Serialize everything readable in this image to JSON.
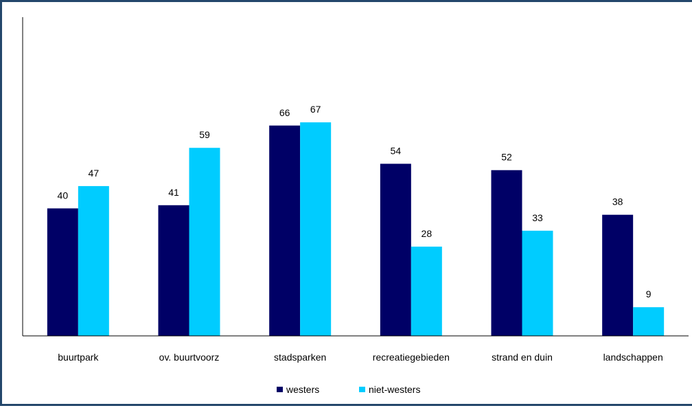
{
  "chart_data": {
    "type": "bar",
    "categories": [
      "buurtpark",
      "ov. buurtvoorz",
      "stadsparken",
      "recreatiegebieden",
      "strand en duin",
      "landschappen"
    ],
    "series": [
      {
        "name": "westers",
        "values": [
          40,
          41,
          66,
          54,
          52,
          38
        ],
        "color": "#000066"
      },
      {
        "name": "niet-westers",
        "values": [
          47,
          59,
          67,
          28,
          33,
          9
        ],
        "color": "#00ccff"
      }
    ],
    "title": "",
    "xlabel": "",
    "ylabel": "",
    "ylim": [
      0,
      100
    ],
    "grid": false,
    "legend_position": "bottom"
  }
}
